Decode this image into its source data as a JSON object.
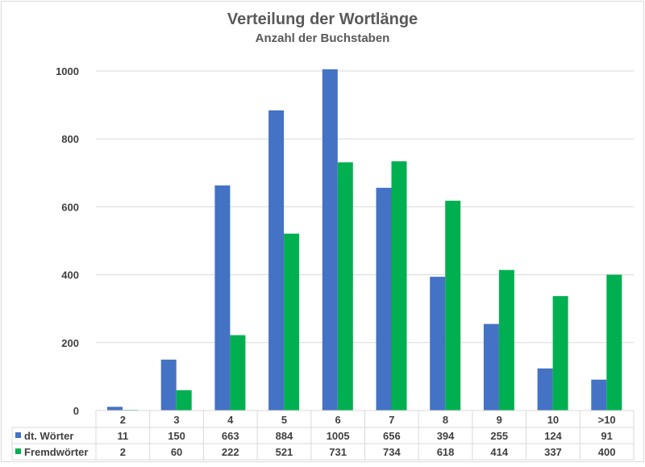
{
  "chart_data": {
    "type": "bar",
    "title": "Verteilung der Wortlänge",
    "subtitle": "Anzahl der Buchstaben",
    "xlabel": "",
    "ylabel": "",
    "ylim": [
      0,
      1000
    ],
    "yticks": [
      0,
      200,
      400,
      600,
      800,
      1000
    ],
    "grid": true,
    "legend": "data-table",
    "categories": [
      "2",
      "3",
      "4",
      "5",
      "6",
      "7",
      "8",
      "9",
      "10",
      ">10"
    ],
    "series": [
      {
        "name": "dt. Wörter",
        "color": "#4472c4",
        "values": [
          11,
          150,
          663,
          884,
          1005,
          656,
          394,
          255,
          124,
          91
        ]
      },
      {
        "name": "Fremdwörter",
        "color": "#00b050",
        "values": [
          2,
          60,
          222,
          521,
          731,
          734,
          618,
          414,
          337,
          400
        ]
      }
    ]
  }
}
